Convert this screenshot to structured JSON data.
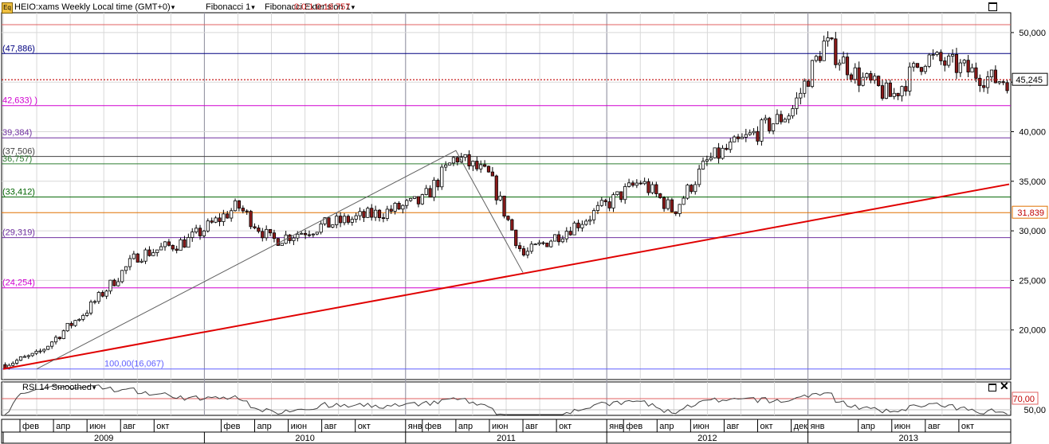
{
  "header": {
    "symbol_label": "HEIO:xams Weekly Local time (GMT+0)",
    "fib1_label": "Fibonacci 1",
    "fib2_label": "Fibonacci Extension 1",
    "fib2_overlap_value": "0.0:1.0:18.757"
  },
  "rsi": {
    "label": "RSI 14 Smoothed",
    "level_label": "70,00",
    "axis_label": "50,00",
    "level": 70
  },
  "price_axis": {
    "ticks": [
      {
        "value": 50000,
        "label": "50,000"
      },
      {
        "value": 45000,
        "label": "45,000"
      },
      {
        "value": 40000,
        "label": "40,000"
      },
      {
        "value": 35000,
        "label": "35,000"
      },
      {
        "value": 30000,
        "label": "30,000"
      },
      {
        "value": 25000,
        "label": "25,000"
      },
      {
        "value": 20000,
        "label": "20,000"
      }
    ],
    "current_price_label": "45,245",
    "trendline_price_label": "31,839"
  },
  "colors": {
    "background": "#ffffff",
    "grid": "#d8d8d8",
    "candle_up": "#ffffff",
    "candle_down": "#8b1a1a",
    "trendline": "#e00000",
    "current_price": "#c00000"
  },
  "fib_levels": [
    {
      "value": 50800,
      "label": "",
      "color": "#e06060"
    },
    {
      "value": 47886,
      "label": "(47,886)",
      "color": "#000080"
    },
    {
      "value": 42633,
      "label": "42,633) )",
      "color": "#d000d0"
    },
    {
      "value": 39384,
      "label": "39,384)",
      "color": "#7030a0"
    },
    {
      "value": 37506,
      "label": "(37,506)",
      "color": "#404040"
    },
    {
      "value": 36757,
      "label": "36,757)",
      "color": "#2e7d32"
    },
    {
      "value": 33412,
      "label": "(33,412)",
      "color": "#006400"
    },
    {
      "value": 31839,
      "label": "",
      "color": "#e07000"
    },
    {
      "value": 29319,
      "label": "(29,319)",
      "color": "#7030a0"
    },
    {
      "value": 24254,
      "label": "(24,254)",
      "color": "#d000d0"
    },
    {
      "value": 16067,
      "label": "100,00(16,067)",
      "color": "#6060ff"
    }
  ],
  "time_axis": {
    "months": [
      "фев",
      "апр",
      "июн",
      "авг",
      "окт",
      "фев",
      "апр",
      "июн",
      "авг",
      "окт",
      "янв",
      "фев",
      "апр",
      "июн",
      "авг",
      "окт",
      "янв",
      "фев",
      "апр",
      "июн",
      "авг",
      "окт",
      "дек",
      "янв",
      "апр",
      "июн",
      "авг",
      "окт"
    ],
    "years": [
      "2009",
      "2010",
      "2011",
      "2012",
      "2013"
    ]
  },
  "chart_data": {
    "type": "candlestick",
    "title": "HEIO:xams Weekly",
    "ylim": [
      15000,
      52000
    ],
    "x_range": [
      "2009-01",
      "2013-12"
    ],
    "trend_line": {
      "from": {
        "x": "2009-01",
        "y": 16067
      },
      "to": {
        "x": "2013-12",
        "y": 34700
      }
    },
    "fibonacci_points": [
      {
        "x": "2009-03",
        "y": 16067
      },
      {
        "x": "2011-04",
        "y": 38100
      },
      {
        "x": "2011-08",
        "y": 25800
      }
    ],
    "weekly_close_anchors": [
      {
        "x": "2009-01",
        "y": 16500
      },
      {
        "x": "2009-03",
        "y": 17500
      },
      {
        "x": "2009-06",
        "y": 22000
      },
      {
        "x": "2009-09",
        "y": 27500
      },
      {
        "x": "2009-12",
        "y": 29000
      },
      {
        "x": "2010-03",
        "y": 32500
      },
      {
        "x": "2010-05",
        "y": 29000
      },
      {
        "x": "2010-08",
        "y": 30500
      },
      {
        "x": "2010-12",
        "y": 32000
      },
      {
        "x": "2011-02",
        "y": 33000
      },
      {
        "x": "2011-04",
        "y": 37500
      },
      {
        "x": "2011-06",
        "y": 35500
      },
      {
        "x": "2011-08",
        "y": 27500
      },
      {
        "x": "2011-10",
        "y": 29500
      },
      {
        "x": "2011-12",
        "y": 31500
      },
      {
        "x": "2012-03",
        "y": 35000
      },
      {
        "x": "2012-05",
        "y": 32000
      },
      {
        "x": "2012-07",
        "y": 37000
      },
      {
        "x": "2012-10",
        "y": 40000
      },
      {
        "x": "2012-12",
        "y": 42000
      },
      {
        "x": "2013-02",
        "y": 49000
      },
      {
        "x": "2013-04",
        "y": 45500
      },
      {
        "x": "2013-06",
        "y": 43500
      },
      {
        "x": "2013-08",
        "y": 47500
      },
      {
        "x": "2013-10",
        "y": 46500
      },
      {
        "x": "2013-12",
        "y": 45245
      }
    ]
  }
}
